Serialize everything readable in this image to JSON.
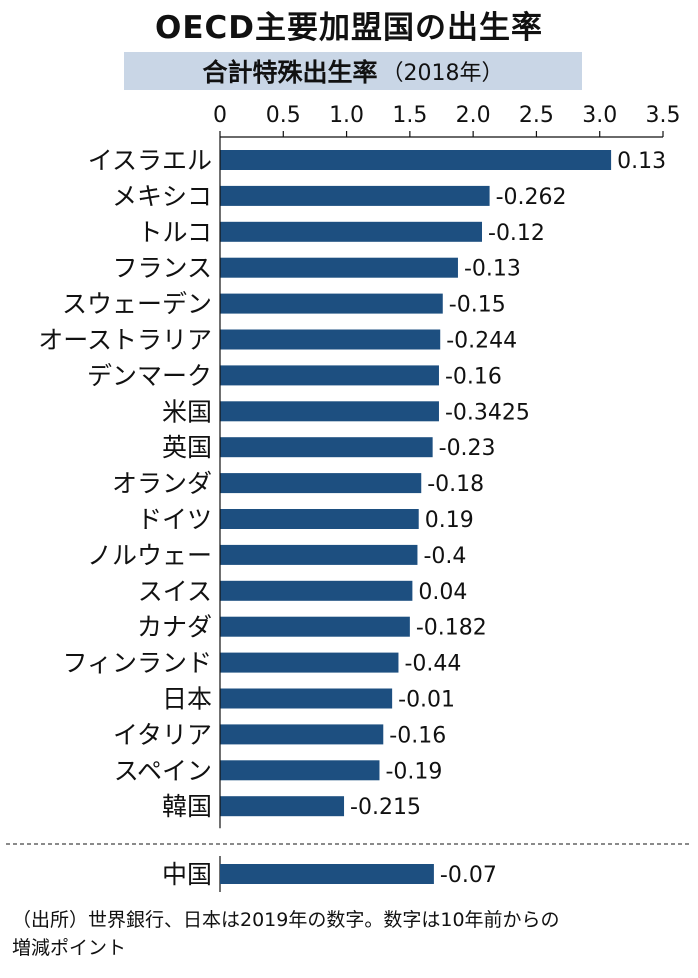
{
  "chart_data": {
    "type": "bar",
    "orientation": "horizontal",
    "title": "OECD主要加盟国の出生率",
    "subtitle": "合計特殊出生率",
    "subtitle_note": "（2018年）",
    "xlim": [
      0,
      3.5
    ],
    "tick_labels": [
      "0",
      "0.5",
      "1.0",
      "1.5",
      "2.0",
      "2.5",
      "3.0",
      "3.5"
    ],
    "tick_values": [
      0,
      0.5,
      1.0,
      1.5,
      2.0,
      2.5,
      3.0,
      3.5
    ],
    "categories": [
      "イスラエル",
      "メキシコ",
      "トルコ",
      "フランス",
      "スウェーデン",
      "オーストラリア",
      "デンマーク",
      "米国",
      "英国",
      "オランダ",
      "ドイツ",
      "ノルウェー",
      "スイス",
      "カナダ",
      "フィンランド",
      "日本",
      "イタリア",
      "スペイン",
      "韓国"
    ],
    "values": [
      3.09,
      2.13,
      2.07,
      1.88,
      1.76,
      1.74,
      1.73,
      1.73,
      1.68,
      1.59,
      1.57,
      1.56,
      1.52,
      1.5,
      1.41,
      1.36,
      1.29,
      1.26,
      0.98
    ],
    "data_labels": [
      "0.13",
      "-0.262",
      "-0.12",
      "-0.13",
      "-0.15",
      "-0.244",
      "-0.16",
      "-0.3425",
      "-0.23",
      "-0.18",
      "0.19",
      "-0.4",
      "0.04",
      "-0.182",
      "-0.44",
      "-0.01",
      "-0.16",
      "-0.19",
      "-0.215"
    ],
    "extra_categories": [
      "中国"
    ],
    "extra_values": [
      1.69
    ],
    "extra_data_labels": [
      "-0.07"
    ],
    "bar_color": "#1d4f80"
  },
  "footer": {
    "line1": "（出所）世界銀行、日本は2019年の数字。数字は10年前からの",
    "line2": "増減ポイント"
  }
}
